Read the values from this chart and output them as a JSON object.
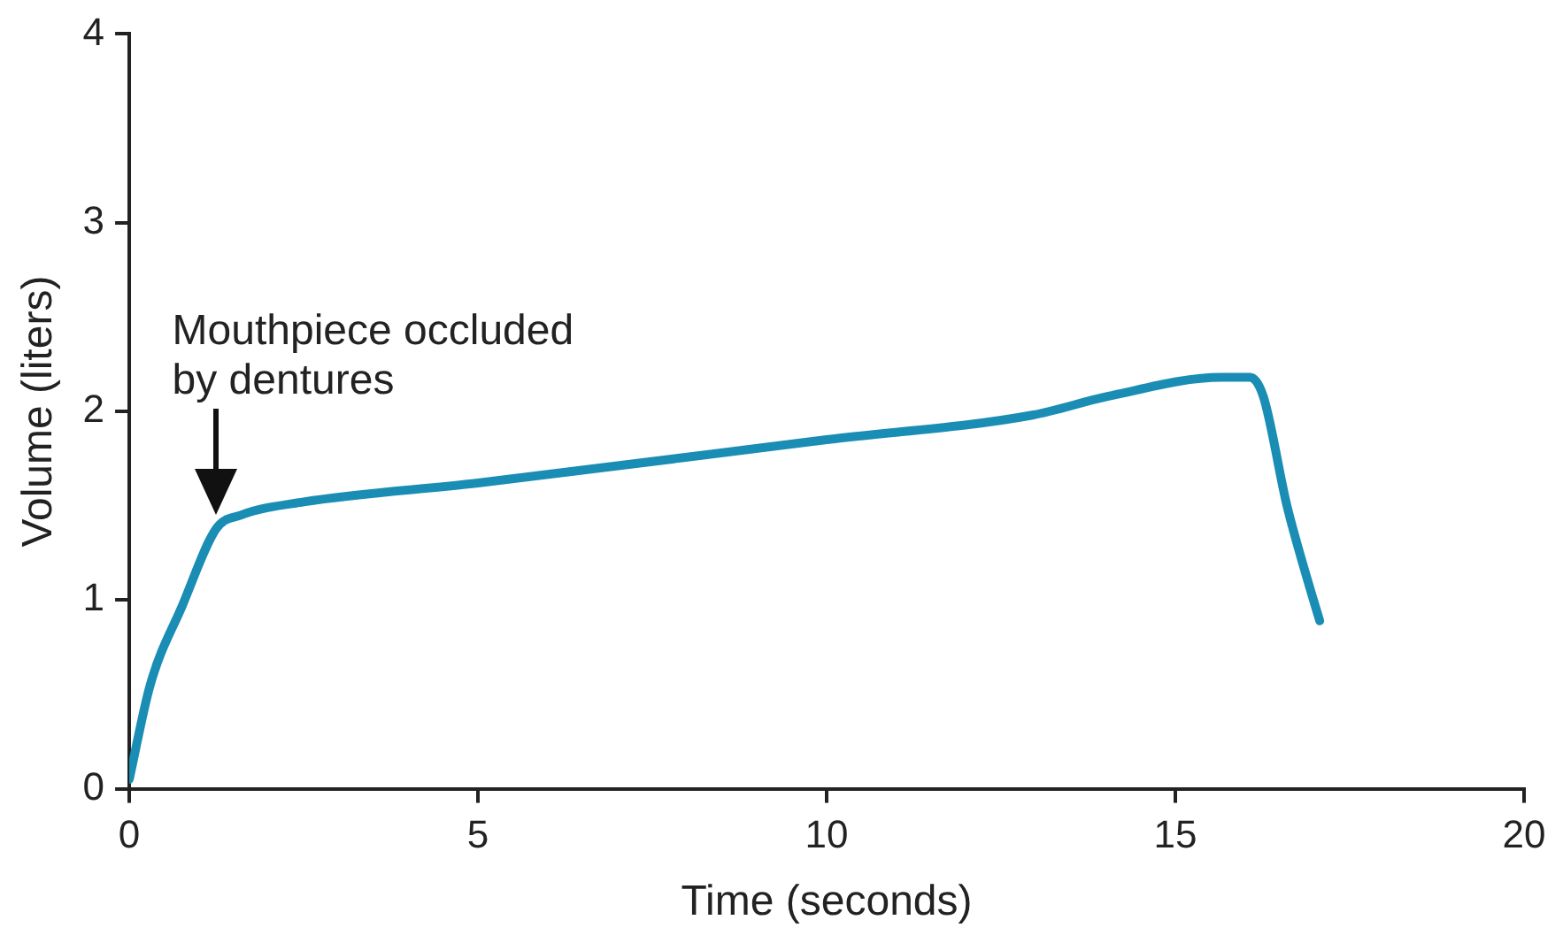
{
  "chart_data": {
    "type": "line",
    "xlabel": "Time (seconds)",
    "ylabel": "Volume (liters)",
    "xlim": [
      0,
      20
    ],
    "xticks": [
      0,
      5,
      10,
      15,
      20
    ],
    "ylim": [
      0,
      4
    ],
    "yticks": [
      0,
      1,
      2,
      3,
      4
    ],
    "grid": false,
    "legend": false,
    "marker": "none",
    "line_style": "solid",
    "annotations": [
      {
        "text": "Mouthpiece occluded\nby dentures",
        "x": 1.25,
        "y": 1.38
      }
    ],
    "series": [
      {
        "color": "#1a8db4",
        "x": [
          0,
          0.3,
          0.76,
          1.25,
          1.6,
          2.5,
          5,
          10,
          12.95,
          14.04,
          15.66,
          16.07,
          16.26,
          16.6,
          16.9,
          17.07
        ],
        "values": [
          0.05,
          0.55,
          0.97,
          1.38,
          1.45,
          1.52,
          1.62,
          1.85,
          1.98,
          2.08,
          2.18,
          2.18,
          2.08,
          1.5,
          1.1,
          0.89
        ]
      }
    ]
  }
}
